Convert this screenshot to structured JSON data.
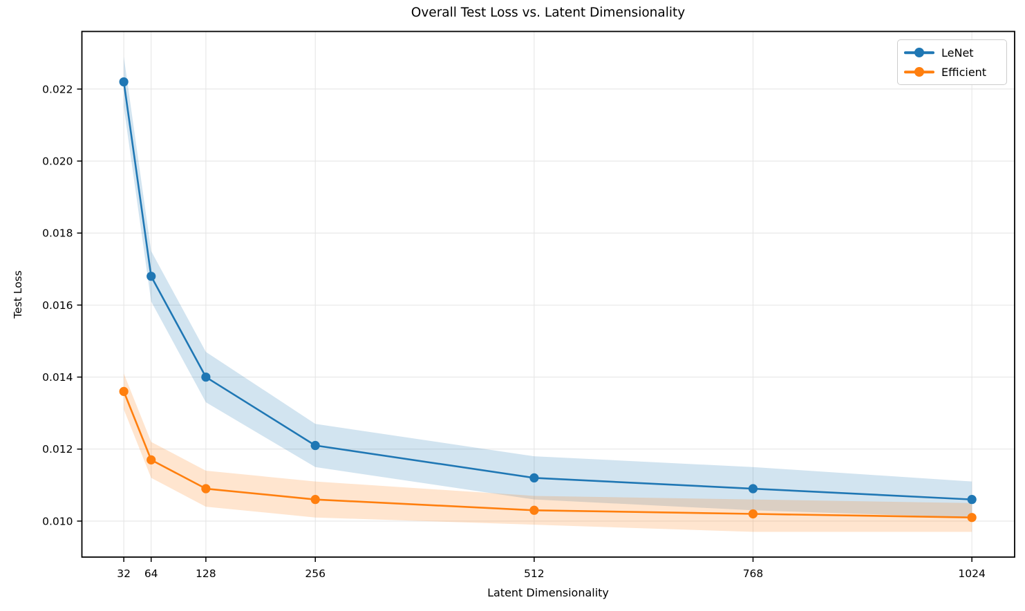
{
  "figure": {
    "title": "Overall Test Loss vs. Latent Dimensionality",
    "xlabel": "Latent Dimensionality",
    "ylabel": "Test Loss"
  },
  "legend": {
    "position": "upper right",
    "items": [
      {
        "label": "LeNet",
        "color": "#1f77b4",
        "glyph": "line-with-circle-marker"
      },
      {
        "label": "Efficient",
        "color": "#ff7f0e",
        "glyph": "line-with-circle-marker"
      }
    ]
  },
  "colors": {
    "background": "#ffffff",
    "grid": "#e6e6e6",
    "spine": "#000000",
    "text": "#000000",
    "legend_border": "#cccccc",
    "series_blue": "#1f77b4",
    "series_orange": "#ff7f0e"
  },
  "chart_data": {
    "type": "line",
    "title": "Overall Test Loss vs. Latent Dimensionality",
    "xlabel": "Latent Dimensionality",
    "ylabel": "Test Loss",
    "grid": true,
    "legend_position": "upper right",
    "band_alpha": 0.2,
    "x": [
      32,
      64,
      128,
      256,
      512,
      768,
      1024
    ],
    "x_tick_labels": [
      "32",
      "64",
      "128",
      "256",
      "512",
      "768",
      "1024"
    ],
    "y_ticks": [
      0.01,
      0.012,
      0.014,
      0.016,
      0.018,
      0.02,
      0.022
    ],
    "y_tick_labels": [
      "0.010",
      "0.012",
      "0.014",
      "0.016",
      "0.018",
      "0.020",
      "0.022"
    ],
    "xlim": [
      -17,
      1074
    ],
    "ylim": [
      0.009,
      0.0236
    ],
    "series": [
      {
        "name": "LeNet",
        "color": "#1f77b4",
        "values": [
          0.0222,
          0.0168,
          0.014,
          0.0121,
          0.0112,
          0.0109,
          0.0106
        ],
        "band_lower": [
          0.0215,
          0.0161,
          0.0133,
          0.0115,
          0.0106,
          0.0103,
          0.0101
        ],
        "band_upper": [
          0.0229,
          0.0175,
          0.0147,
          0.0127,
          0.0118,
          0.0115,
          0.0111
        ]
      },
      {
        "name": "Efficient",
        "color": "#ff7f0e",
        "values": [
          0.0136,
          0.0117,
          0.0109,
          0.0106,
          0.0103,
          0.0102,
          0.0101
        ],
        "band_lower": [
          0.0131,
          0.0112,
          0.0104,
          0.0101,
          0.0099,
          0.0097,
          0.0097
        ],
        "band_upper": [
          0.0141,
          0.0122,
          0.0114,
          0.0111,
          0.0107,
          0.0106,
          0.0105
        ]
      }
    ]
  }
}
